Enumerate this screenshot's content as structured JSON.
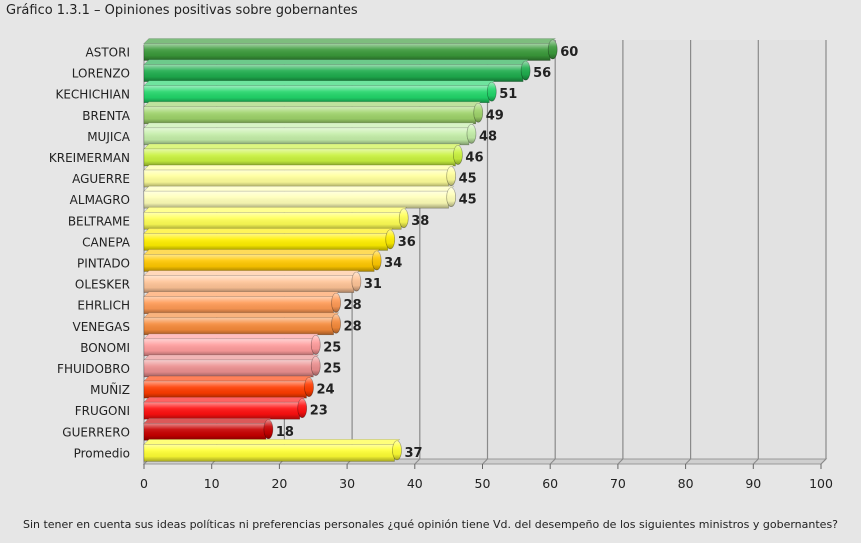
{
  "chart_data": {
    "type": "bar",
    "orientation": "horizontal",
    "title": "Gráfico 1.3.1 – Opiniones positivas sobre gobernantes",
    "footnote": "Sin tener en cuenta sus ideas políticas ni preferencias personales ¿qué opinión tiene Vd. del desempeño de los siguientes ministros y gobernantes?",
    "categories": [
      "ASTORI",
      "LORENZO",
      "KECHICHIAN",
      "BRENTA",
      "MUJICA",
      "KREIMERMAN",
      "AGUERRE",
      "ALMAGRO",
      "BELTRAME",
      "CANEPA",
      "PINTADO",
      "OLESKER",
      "EHRLICH",
      "VENEGAS",
      "BONOMI",
      "FHUIDOBRO",
      "MUÑIZ",
      "FRUGONI",
      "GUERRERO",
      "Promedio"
    ],
    "values": [
      60,
      56,
      51,
      49,
      48,
      46,
      45,
      45,
      38,
      36,
      34,
      31,
      28,
      28,
      25,
      25,
      24,
      23,
      18,
      37
    ],
    "colors": [
      "#3a9a3a",
      "#1fae4e",
      "#22d66a",
      "#9ed36a",
      "#c4eea8",
      "#c9f23e",
      "#ffff9a",
      "#ffffb8",
      "#ffff55",
      "#ffef00",
      "#ffc800",
      "#ffc497",
      "#ff9a55",
      "#f68a3a",
      "#ff9c9c",
      "#ec9090",
      "#ff3c00",
      "#ff1010",
      "#c80000",
      "#ffff33"
    ],
    "xlim": [
      0,
      100
    ],
    "xticks": [
      0,
      10,
      20,
      30,
      40,
      50,
      60,
      70,
      80,
      90,
      100
    ],
    "grid": true,
    "legend": "none"
  }
}
